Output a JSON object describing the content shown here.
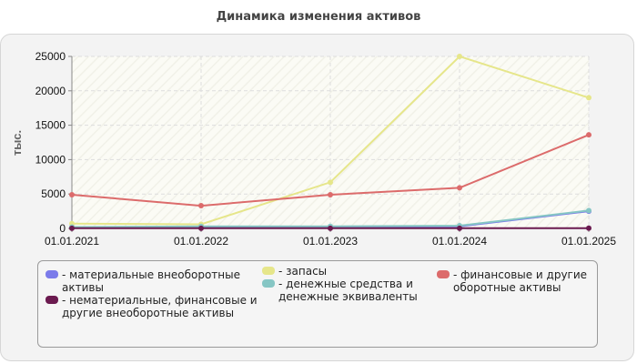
{
  "title": "Динамика изменения активов",
  "chart_data": {
    "type": "line",
    "title": "Динамика изменения активов",
    "ylabel": "тыс.",
    "xlabel": "",
    "x": [
      "01.01.2021",
      "01.01.2022",
      "01.01.2023",
      "01.01.2024",
      "01.01.2025"
    ],
    "yticks": [
      "0",
      "5000",
      "10000",
      "15000",
      "20000",
      "25000"
    ],
    "ylim": [
      0,
      25000
    ],
    "grid": true,
    "legend_position": "bottom",
    "series": [
      {
        "name": "- материальные внеоборотные активы",
        "color": "#7b7bea",
        "values": [
          100,
          150,
          200,
          300,
          2500
        ]
      },
      {
        "name": "- нематериальные, финансовые и другие внеоборотные активы",
        "color": "#6b1a4f",
        "values": [
          20,
          20,
          20,
          20,
          30
        ]
      },
      {
        "name": "- запасы",
        "color": "#e6e68a",
        "values": [
          700,
          600,
          6700,
          25000,
          19000
        ]
      },
      {
        "name": "- денежные средства и денежные эквиваленты",
        "color": "#86c6c4",
        "values": [
          200,
          300,
          300,
          400,
          2600
        ]
      },
      {
        "name": "- финансовые и другие оборотные активы",
        "color": "#dc6b6b",
        "values": [
          4900,
          3300,
          4900,
          5900,
          13600
        ]
      }
    ]
  }
}
